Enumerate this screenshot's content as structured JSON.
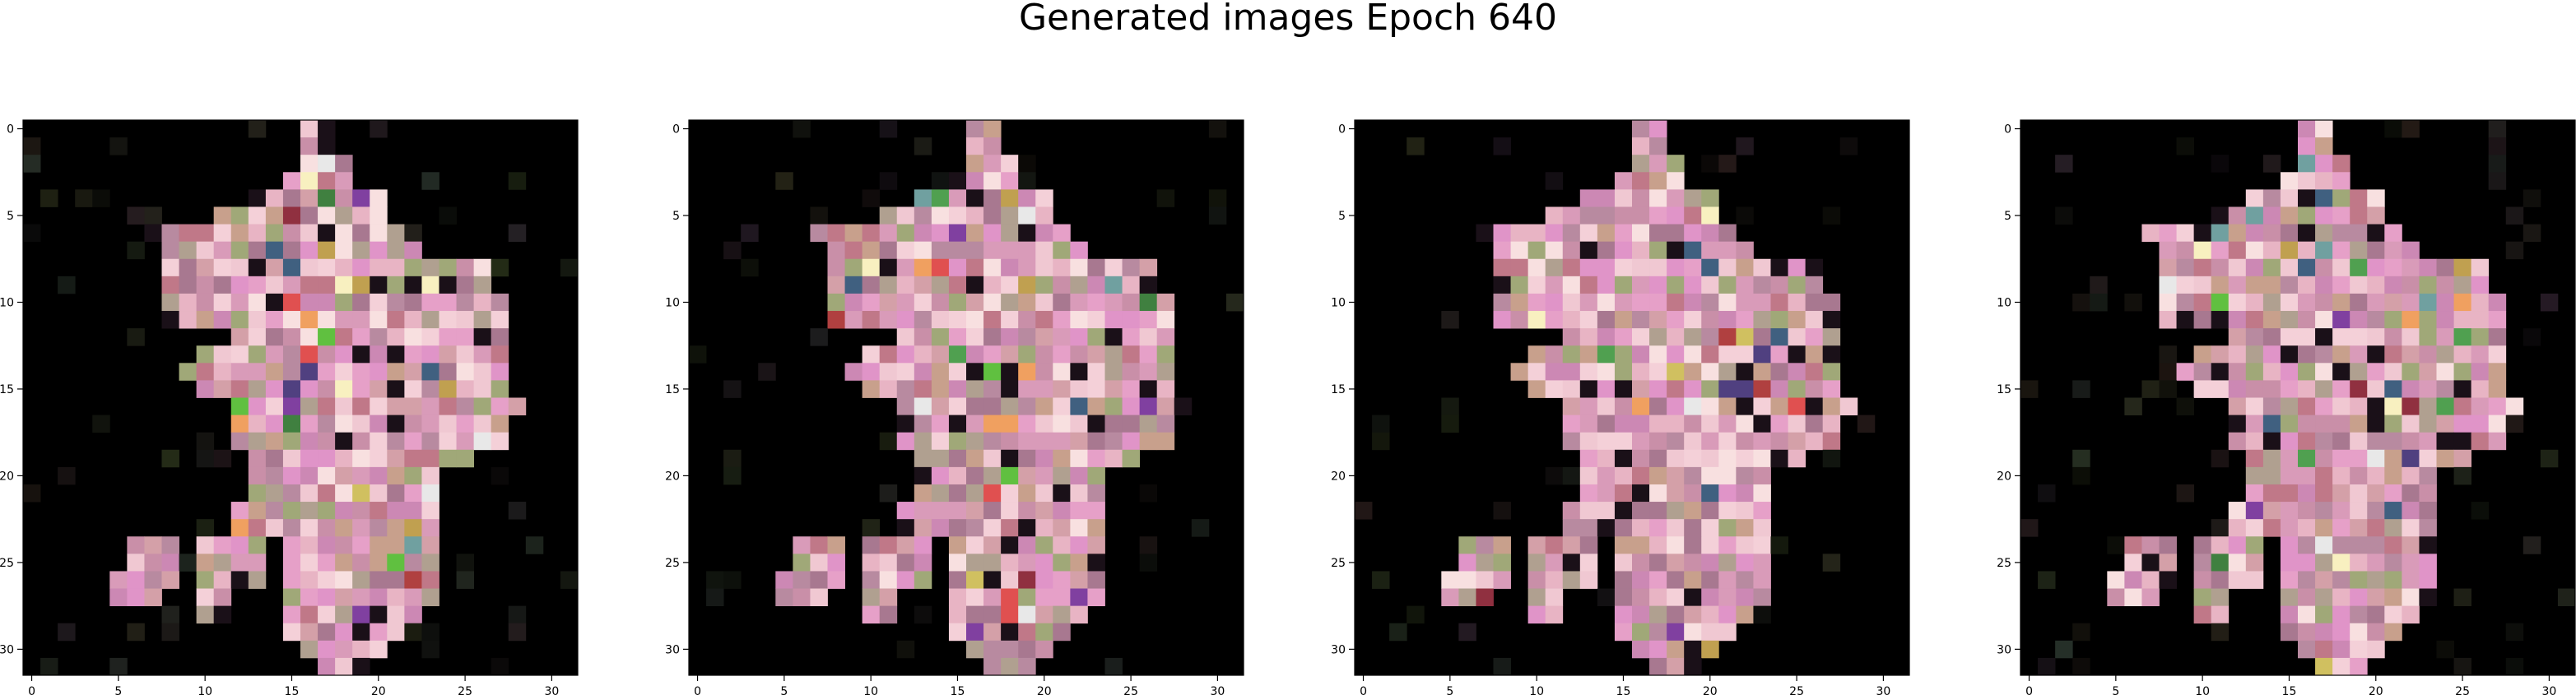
{
  "figure": {
    "title": "Generated images Epoch 640"
  },
  "chart_data": [
    {
      "type": "heatmap",
      "xlim": [
        -0.5,
        31.5
      ],
      "ylim": [
        31.5,
        -0.5
      ],
      "xticks": [
        0,
        5,
        10,
        15,
        20,
        25,
        30
      ],
      "yticks": [
        0,
        5,
        10,
        15,
        20,
        25,
        30
      ],
      "grid": false,
      "values": "RGB image, 32x32 pixels; mostly black background with a pink/mauve pixel-art figure in the centre"
    },
    {
      "type": "heatmap",
      "xlim": [
        -0.5,
        31.5
      ],
      "ylim": [
        31.5,
        -0.5
      ],
      "xticks": [
        0,
        5,
        10,
        15,
        20,
        25,
        30
      ],
      "yticks": [
        0,
        5,
        10,
        15,
        20,
        25,
        30
      ],
      "grid": false,
      "values": "RGB image, 32x32 pixels; mostly black background with a pink/mauve pixel-art figure in the centre"
    },
    {
      "type": "heatmap",
      "xlim": [
        -0.5,
        31.5
      ],
      "ylim": [
        31.5,
        -0.5
      ],
      "xticks": [
        0,
        5,
        10,
        15,
        20,
        25,
        30
      ],
      "yticks": [
        0,
        5,
        10,
        15,
        20,
        25,
        30
      ],
      "grid": false,
      "values": "RGB image, 32x32 pixels; mostly black background with a pink/mauve pixel-art figure in the centre"
    },
    {
      "type": "heatmap",
      "xlim": [
        -0.5,
        31.5
      ],
      "ylim": [
        31.5,
        -0.5
      ],
      "xticks": [
        0,
        5,
        10,
        15,
        20,
        25,
        30
      ],
      "yticks": [
        0,
        5,
        10,
        15,
        20,
        25,
        30
      ],
      "grid": false,
      "values": "RGB image, 32x32 pixels; mostly black background with a pink/mauve pixel-art figure in the centre"
    }
  ],
  "colors": {
    "background": "#000000",
    "palette": [
      "#e6a0c8",
      "#d99bb9",
      "#c98fa8",
      "#e8b4c4",
      "#f0c8d2",
      "#b88aa0",
      "#d4a0a8",
      "#c8a08c",
      "#e094c8",
      "#a87890",
      "#cc88b4",
      "#f4d0d8",
      "#b0a090",
      "#a0a878",
      "#c07888",
      "#f8e0e0"
    ],
    "accents": [
      "#e05050",
      "#f8f0c0",
      "#60c040",
      "#504080",
      "#c0a050",
      "#408040",
      "#8040a0",
      "#f0a060",
      "#70a0a0",
      "#903040",
      "#406080",
      "#d0c060",
      "#50a050",
      "#e8e8e8",
      "#b04040"
    ]
  }
}
